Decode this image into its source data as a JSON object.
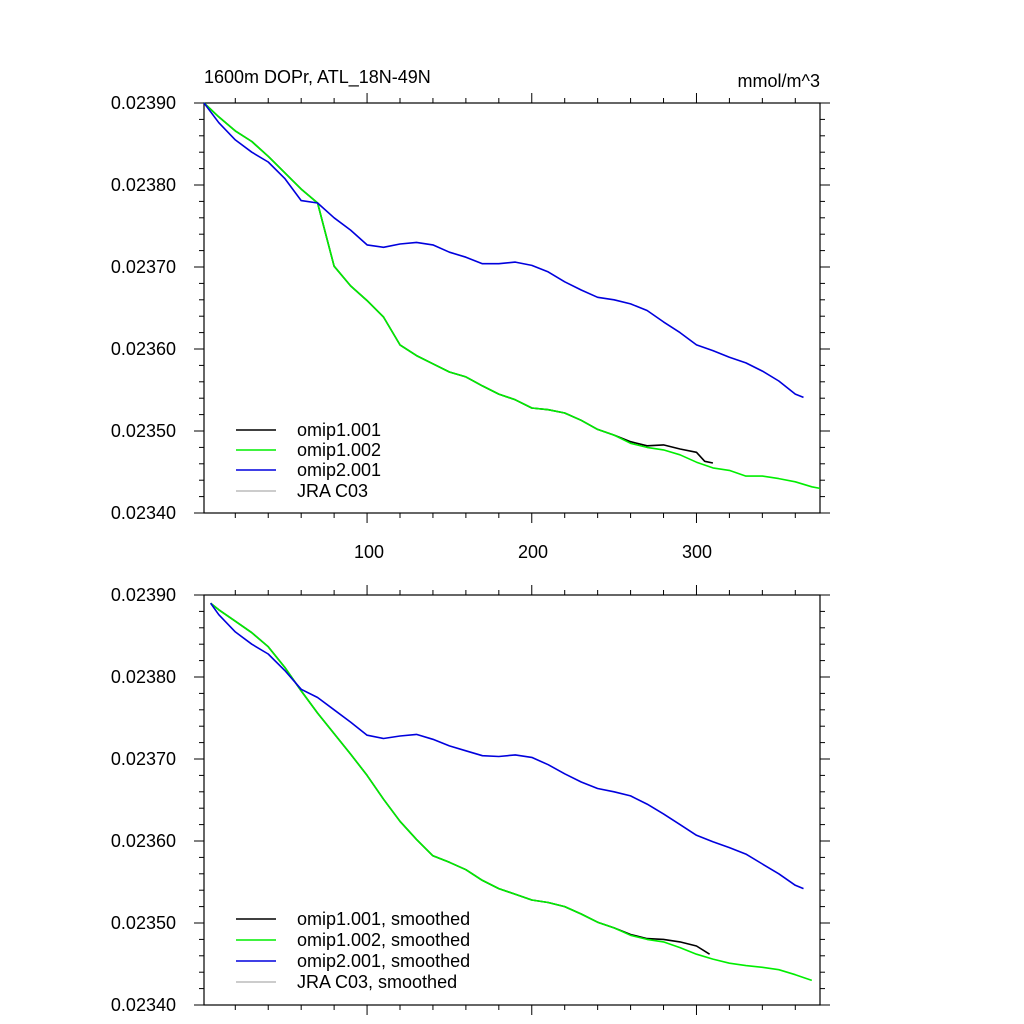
{
  "chart_data": [
    {
      "type": "line",
      "title": "1600m DOPr, ATL_18N-49N",
      "units": "mmol/m^3",
      "xlabel": "",
      "ylabel": "",
      "xlim": [
        1,
        375
      ],
      "ylim": [
        0.0234,
        0.0239
      ],
      "yticks": [
        "0.02390",
        "0.02380",
        "0.02370",
        "0.02360",
        "0.02350",
        "0.02340"
      ],
      "xticks": [
        "100",
        "200",
        "300"
      ],
      "legend_position": "bottom-left",
      "series": [
        {
          "name": "omip1.001",
          "color": "#000000",
          "x": [
            1,
            10,
            20,
            30,
            40,
            50,
            60,
            70,
            80,
            90,
            100,
            110,
            120,
            130,
            140,
            150,
            160,
            170,
            180,
            190,
            200,
            210,
            220,
            230,
            240,
            250,
            260,
            270,
            280,
            290,
            300,
            305,
            310
          ],
          "y": [
            0.0239,
            0.023883,
            0.023866,
            0.023853,
            0.023835,
            0.023815,
            0.023795,
            0.023778,
            0.023701,
            0.023677,
            0.023659,
            0.023639,
            0.023605,
            0.023592,
            0.023582,
            0.023572,
            0.023566,
            0.023555,
            0.023545,
            0.023538,
            0.023528,
            0.023526,
            0.023522,
            0.023513,
            0.023502,
            0.023495,
            0.023487,
            0.023482,
            0.023483,
            0.023478,
            0.023474,
            0.023463,
            0.023461
          ]
        },
        {
          "name": "omip1.002",
          "color": "#00ee00",
          "x": [
            1,
            10,
            20,
            30,
            40,
            50,
            60,
            70,
            80,
            90,
            100,
            110,
            120,
            130,
            140,
            150,
            160,
            170,
            180,
            190,
            200,
            210,
            220,
            230,
            240,
            250,
            260,
            270,
            280,
            290,
            300,
            310,
            320,
            330,
            340,
            350,
            360,
            370,
            375
          ],
          "y": [
            0.0239,
            0.023883,
            0.023866,
            0.023853,
            0.023835,
            0.023815,
            0.023795,
            0.023778,
            0.023701,
            0.023677,
            0.023659,
            0.023639,
            0.023605,
            0.023592,
            0.023582,
            0.023572,
            0.023566,
            0.023555,
            0.023545,
            0.023538,
            0.023528,
            0.023526,
            0.023522,
            0.023513,
            0.023502,
            0.023495,
            0.023485,
            0.02348,
            0.023477,
            0.023471,
            0.023462,
            0.023455,
            0.023452,
            0.023445,
            0.023445,
            0.023442,
            0.023438,
            0.023432,
            0.02343
          ]
        },
        {
          "name": "omip2.001",
          "color": "#0000dd",
          "x": [
            1,
            10,
            20,
            30,
            40,
            50,
            60,
            70,
            80,
            90,
            100,
            110,
            120,
            130,
            140,
            150,
            160,
            170,
            180,
            190,
            200,
            210,
            220,
            230,
            240,
            250,
            260,
            270,
            280,
            290,
            300,
            310,
            320,
            330,
            340,
            350,
            360,
            365
          ],
          "y": [
            0.0239,
            0.023876,
            0.023855,
            0.02384,
            0.023828,
            0.023808,
            0.023781,
            0.023778,
            0.02376,
            0.023745,
            0.023727,
            0.023724,
            0.023728,
            0.02373,
            0.023727,
            0.023718,
            0.023712,
            0.023704,
            0.023704,
            0.023706,
            0.023702,
            0.023694,
            0.023682,
            0.023672,
            0.023663,
            0.02366,
            0.023655,
            0.023647,
            0.023633,
            0.02362,
            0.023605,
            0.023598,
            0.02359,
            0.023583,
            0.023573,
            0.023561,
            0.023545,
            0.023541
          ]
        },
        {
          "name": "JRA C03",
          "color": "#bbbbbb",
          "x": [],
          "y": []
        }
      ]
    },
    {
      "type": "line",
      "title": "",
      "units": "",
      "xlabel": "",
      "ylabel": "",
      "xlim": [
        1,
        375
      ],
      "ylim": [
        0.0234,
        0.0239
      ],
      "yticks": [
        "0.02390",
        "0.02380",
        "0.02370",
        "0.02360",
        "0.02350",
        "0.02340"
      ],
      "xticks": [],
      "legend_position": "bottom-left",
      "series": [
        {
          "name": "omip1.001, smoothed",
          "color": "#000000",
          "x": [
            5,
            10,
            20,
            30,
            40,
            50,
            60,
            70,
            80,
            90,
            100,
            110,
            120,
            130,
            140,
            150,
            160,
            170,
            180,
            190,
            200,
            210,
            220,
            230,
            240,
            250,
            260,
            270,
            280,
            290,
            300,
            308
          ],
          "y": [
            0.02389,
            0.023882,
            0.023868,
            0.023854,
            0.023837,
            0.023812,
            0.023783,
            0.023756,
            0.023731,
            0.023706,
            0.02368,
            0.023651,
            0.023624,
            0.023602,
            0.023582,
            0.023574,
            0.023565,
            0.023552,
            0.023542,
            0.023535,
            0.023528,
            0.023525,
            0.02352,
            0.023511,
            0.023501,
            0.023494,
            0.023486,
            0.023481,
            0.02348,
            0.023477,
            0.023472,
            0.023462
          ]
        },
        {
          "name": "omip1.002, smoothed",
          "color": "#00ee00",
          "x": [
            5,
            10,
            20,
            30,
            40,
            50,
            60,
            70,
            80,
            90,
            100,
            110,
            120,
            130,
            140,
            150,
            160,
            170,
            180,
            190,
            200,
            210,
            220,
            230,
            240,
            250,
            260,
            270,
            280,
            290,
            300,
            310,
            320,
            330,
            340,
            350,
            360,
            370
          ],
          "y": [
            0.02389,
            0.023882,
            0.023868,
            0.023854,
            0.023837,
            0.023812,
            0.023783,
            0.023756,
            0.023731,
            0.023706,
            0.02368,
            0.023651,
            0.023624,
            0.023602,
            0.023582,
            0.023574,
            0.023565,
            0.023552,
            0.023542,
            0.023535,
            0.023528,
            0.023525,
            0.02352,
            0.023511,
            0.023501,
            0.023494,
            0.023485,
            0.02348,
            0.023477,
            0.02347,
            0.023462,
            0.023456,
            0.023451,
            0.023448,
            0.023446,
            0.023443,
            0.023437,
            0.02343
          ]
        },
        {
          "name": "omip2.001, smoothed",
          "color": "#0000dd",
          "x": [
            5,
            10,
            20,
            30,
            40,
            50,
            60,
            70,
            80,
            90,
            100,
            110,
            120,
            130,
            140,
            150,
            160,
            170,
            180,
            190,
            200,
            210,
            220,
            230,
            240,
            250,
            260,
            270,
            280,
            290,
            300,
            310,
            320,
            330,
            340,
            350,
            360,
            365
          ],
          "y": [
            0.02389,
            0.023876,
            0.023855,
            0.02384,
            0.023828,
            0.023808,
            0.023785,
            0.023775,
            0.02376,
            0.023745,
            0.023729,
            0.023725,
            0.023728,
            0.02373,
            0.023724,
            0.023716,
            0.02371,
            0.023704,
            0.023703,
            0.023705,
            0.023702,
            0.023693,
            0.023682,
            0.023672,
            0.023664,
            0.02366,
            0.023655,
            0.023645,
            0.023633,
            0.02362,
            0.023607,
            0.023599,
            0.023592,
            0.023584,
            0.023572,
            0.02356,
            0.023546,
            0.023542
          ]
        },
        {
          "name": "JRA C03, smoothed",
          "color": "#bbbbbb",
          "x": [],
          "y": []
        }
      ]
    }
  ]
}
